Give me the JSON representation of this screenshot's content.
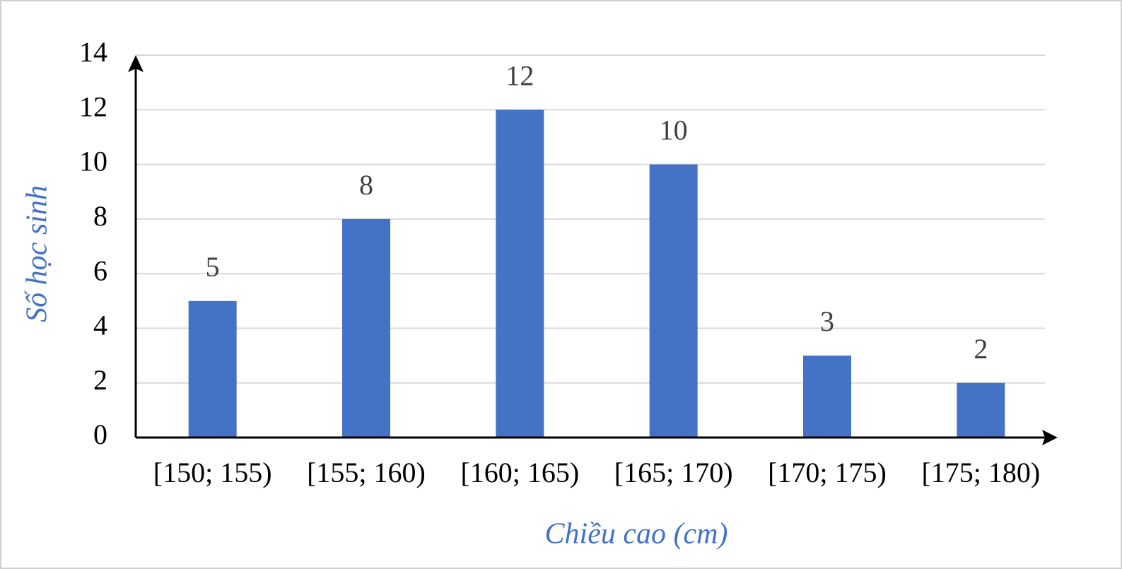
{
  "chart_data": {
    "type": "bar",
    "categories": [
      "[150; 155)",
      "[155; 160)",
      "[160; 165)",
      "[165; 170)",
      "[170; 175)",
      "[175; 180)"
    ],
    "values": [
      5,
      8,
      12,
      10,
      3,
      2
    ],
    "color": "#4472c4",
    "x_label": "Chiều cao (cm)",
    "y_label": "Số học sinh",
    "ylim": [
      0,
      14
    ],
    "yticks": [
      0,
      2,
      4,
      6,
      8,
      10,
      12,
      14
    ],
    "grid": true
  }
}
